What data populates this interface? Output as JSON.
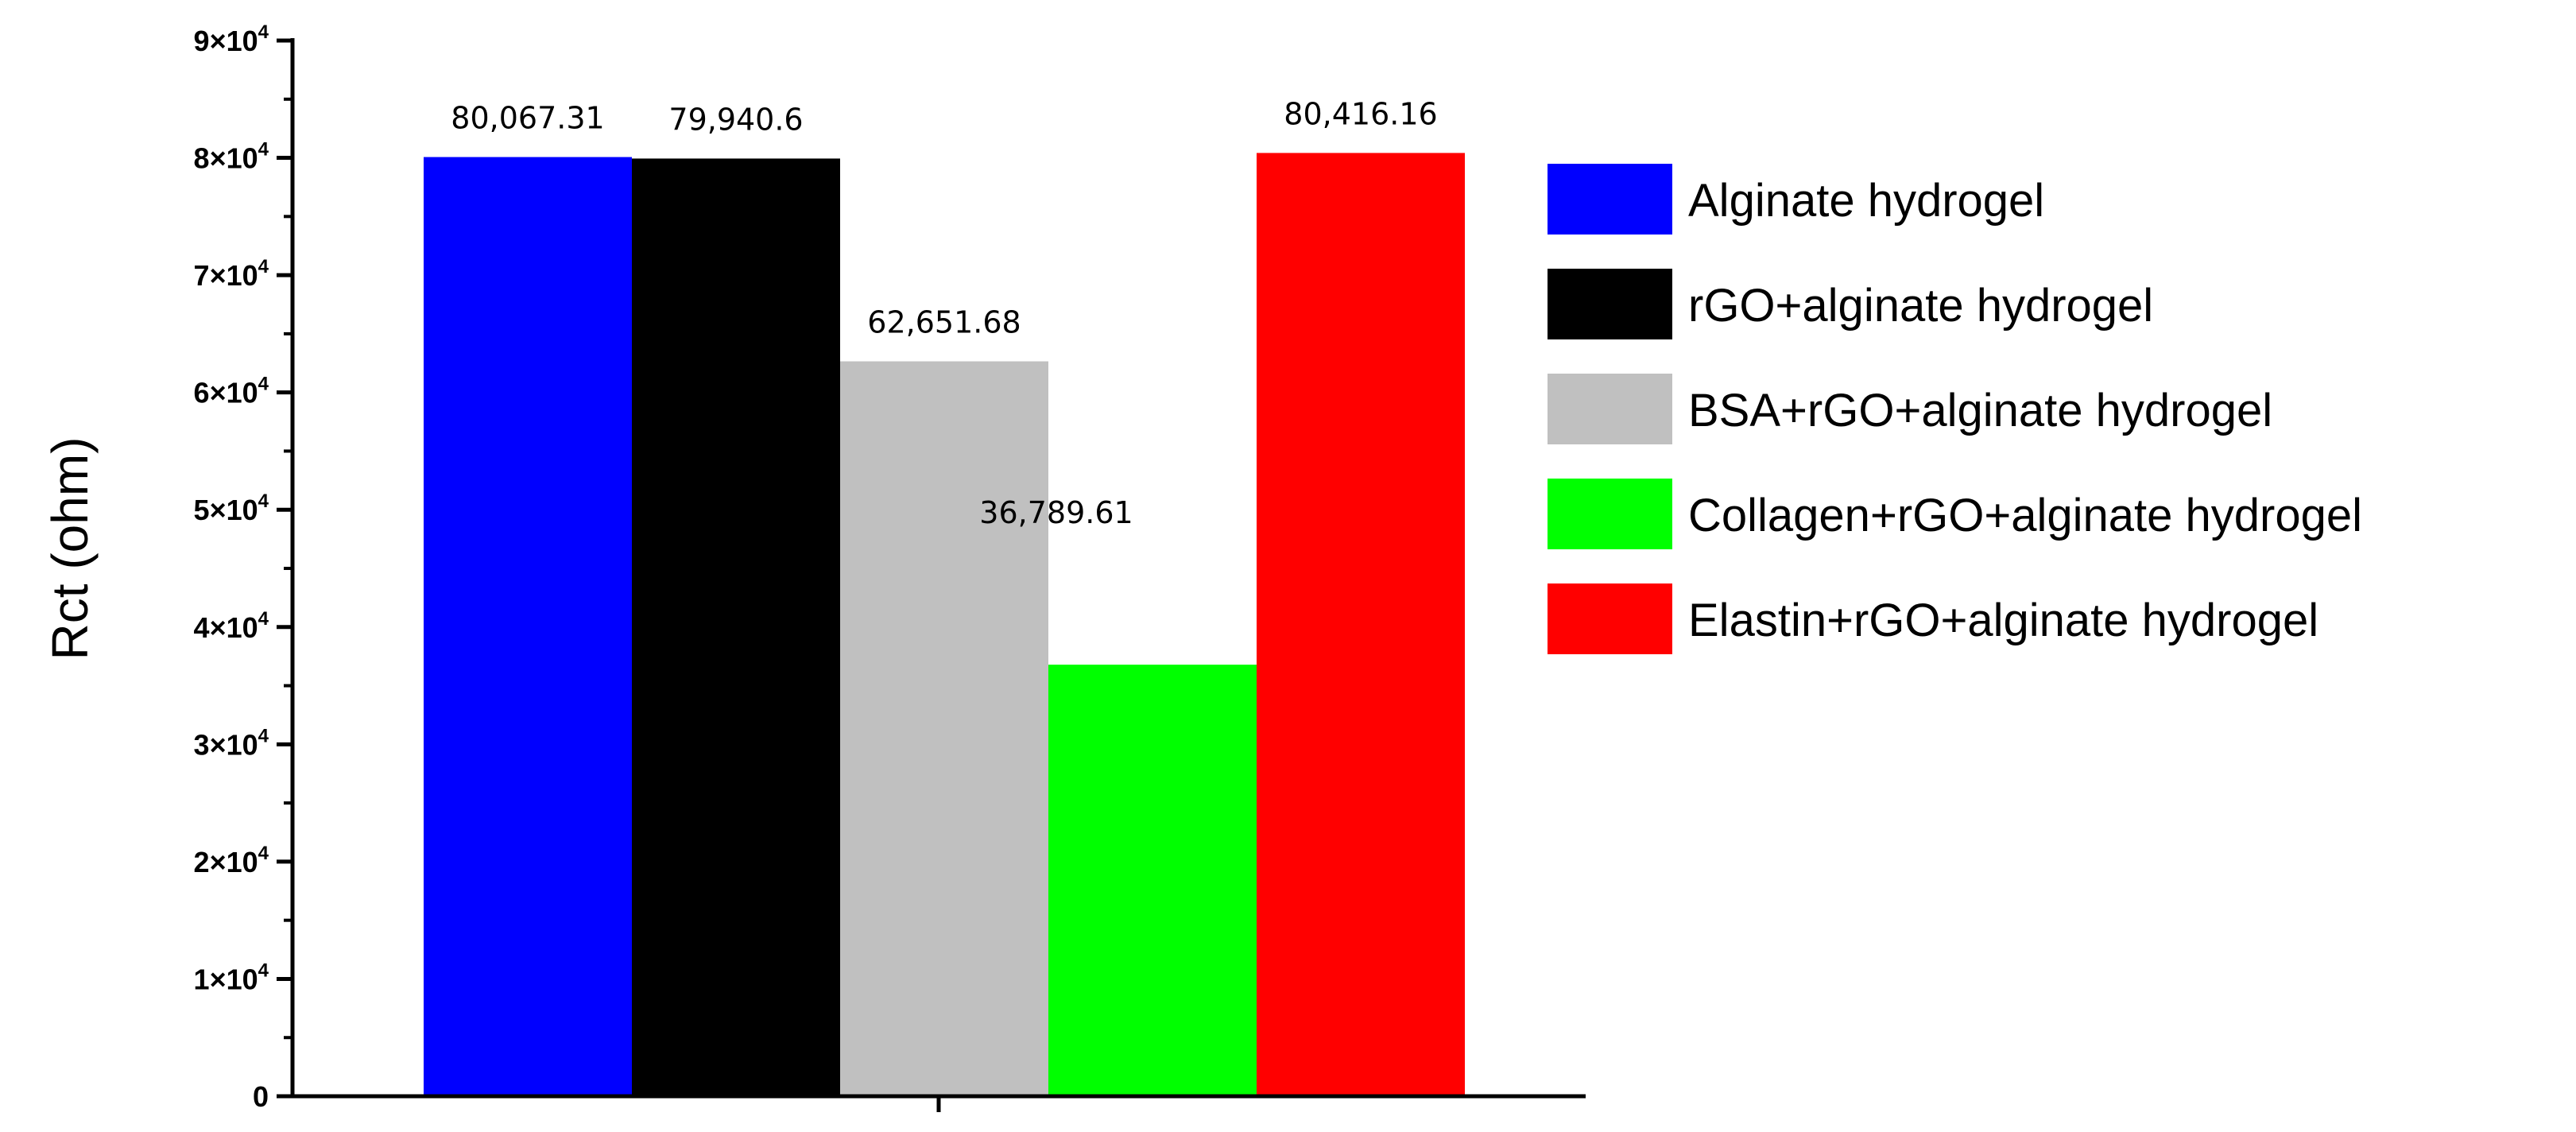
{
  "chart_data": {
    "type": "bar",
    "title": "",
    "xlabel": "",
    "ylabel": "Rct (ohm)",
    "ylim": [
      0,
      90000
    ],
    "yticks": [
      {
        "value": 0,
        "label": "0",
        "exp": ""
      },
      {
        "value": 10000,
        "label": "1×10",
        "exp": "4"
      },
      {
        "value": 20000,
        "label": "2×10",
        "exp": "4"
      },
      {
        "value": 30000,
        "label": "3×10",
        "exp": "4"
      },
      {
        "value": 40000,
        "label": "4×10",
        "exp": "4"
      },
      {
        "value": 50000,
        "label": "5×10",
        "exp": "4"
      },
      {
        "value": 60000,
        "label": "6×10",
        "exp": "4"
      },
      {
        "value": 70000,
        "label": "7×10",
        "exp": "4"
      },
      {
        "value": 80000,
        "label": "8×10",
        "exp": "4"
      },
      {
        "value": 90000,
        "label": "9×10",
        "exp": "4"
      }
    ],
    "grid": false,
    "legend_position": "right",
    "series": [
      {
        "name": "Alginate hydrogel",
        "value": 80067.31,
        "label": "80,067.31",
        "color": "#0000ff"
      },
      {
        "name": "rGO+alginate hydrogel",
        "value": 79940.6,
        "label": "79,940.6",
        "color": "#000000"
      },
      {
        "name": "BSA+rGO+alginate hydrogel",
        "value": 62651.68,
        "label": "62,651.68",
        "color": "#c0c0c0"
      },
      {
        "name": "Collagen+rGO+alginate hydrogel",
        "value": 36789.61,
        "label": "36,789.61",
        "color": "#00ff00"
      },
      {
        "name": "Elastin+rGO+alginate hydrogel",
        "value": 80416.16,
        "label": "80,416.16",
        "color": "#ff0000"
      }
    ]
  }
}
